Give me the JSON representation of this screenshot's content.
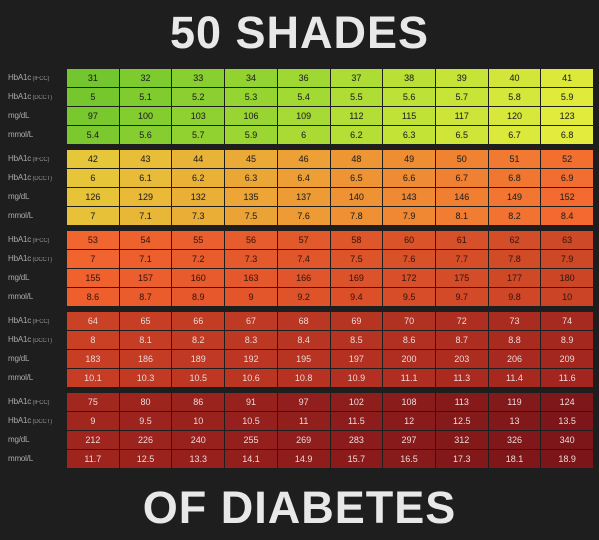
{
  "title_top": "50 SHADES",
  "title_bottom": "OF DIABETES",
  "background": "#1e1e1e",
  "title_color": "#e8e8e8",
  "title_fontsize": 45,
  "row_labels": [
    "HbA1c (IFCC)",
    "HbA1c (DCCT)",
    "mg/dL",
    "mmol/L"
  ],
  "blocks": [
    {
      "row_colors": [
        [
          "#73c62e",
          "#7dcb2f",
          "#88cf30",
          "#93d331",
          "#a0d833",
          "#addc35",
          "#bae036",
          "#c6e338",
          "#d1e639",
          "#dce93b"
        ],
        [
          "#76c72e",
          "#80cc2f",
          "#8bd030",
          "#96d432",
          "#a3d933",
          "#b0dd35",
          "#bde137",
          "#c9e438",
          "#d4e73a",
          "#dfea3b"
        ],
        [
          "#79c82e",
          "#83cd2f",
          "#8ed131",
          "#99d532",
          "#a6da34",
          "#b3de35",
          "#c0e237",
          "#cce538",
          "#d7e83a",
          "#e1eb3c"
        ],
        [
          "#7cc92f",
          "#86ce30",
          "#91d231",
          "#9cd632",
          "#a9db34",
          "#b6df36",
          "#c3e337",
          "#cfe639",
          "#dae93a",
          "#e3ec3c"
        ]
      ],
      "rows": [
        [
          31,
          32,
          33,
          34,
          36,
          37,
          38,
          39,
          40,
          41
        ],
        [
          5,
          5.1,
          5.2,
          5.3,
          5.4,
          5.5,
          5.6,
          5.7,
          5.8,
          5.9
        ],
        [
          97,
          100,
          103,
          106,
          109,
          112,
          115,
          117,
          120,
          123
        ],
        [
          5.4,
          5.6,
          5.7,
          5.9,
          6.0,
          6.2,
          6.3,
          6.5,
          6.7,
          6.8
        ]
      ]
    },
    {
      "row_colors": [
        [
          "#e6c739",
          "#e8bd38",
          "#e9b337",
          "#eba936",
          "#eda035",
          "#ee9634",
          "#ef8d33",
          "#f08332",
          "#f17931",
          "#f26f30"
        ],
        [
          "#e7c539",
          "#e8bb38",
          "#eab137",
          "#eba736",
          "#ed9e35",
          "#ee9434",
          "#ef8b33",
          "#f08132",
          "#f17731",
          "#f26d30"
        ],
        [
          "#e7c338",
          "#e9b937",
          "#eaaf37",
          "#eca536",
          "#ed9c35",
          "#ee9234",
          "#f08933",
          "#f17f32",
          "#f27531",
          "#f36b30"
        ],
        [
          "#e7c138",
          "#e9b737",
          "#eaad36",
          "#eca336",
          "#ee9a35",
          "#ef9034",
          "#f08733",
          "#f17d32",
          "#f27331",
          "#f3692f"
        ]
      ],
      "rows": [
        [
          42,
          43,
          44,
          45,
          46,
          48,
          49,
          50,
          51,
          52
        ],
        [
          6,
          6.1,
          6.2,
          6.3,
          6.4,
          6.5,
          6.6,
          6.7,
          6.8,
          6.9
        ],
        [
          126,
          129,
          132,
          135,
          137,
          140,
          143,
          146,
          149,
          152
        ],
        [
          7.0,
          7.1,
          7.3,
          7.5,
          7.6,
          7.8,
          7.9,
          8.1,
          8.2,
          8.4
        ]
      ]
    },
    {
      "row_colors": [
        [
          "#f2652f",
          "#ee622e",
          "#ea5f2d",
          "#e65c2c",
          "#e2592b",
          "#de562a",
          "#da5329",
          "#d65029",
          "#d24d28",
          "#ce4a27"
        ],
        [
          "#f1632f",
          "#ed602e",
          "#e95d2d",
          "#e55a2c",
          "#e1572b",
          "#dd542a",
          "#d95129",
          "#d54e28",
          "#d14b27",
          "#cd4827"
        ],
        [
          "#f0612e",
          "#ec5e2d",
          "#e85b2c",
          "#e4582b",
          "#e0552b",
          "#dc522a",
          "#d84f29",
          "#d44c28",
          "#d04927",
          "#cc4626"
        ],
        [
          "#ef5f2e",
          "#eb5c2d",
          "#e7592c",
          "#e3562b",
          "#df532a",
          "#db5029",
          "#d74d29",
          "#d34a28",
          "#cf4727",
          "#cb4426"
        ]
      ],
      "rows": [
        [
          53,
          54,
          55,
          56,
          57,
          58,
          60,
          61,
          62,
          63
        ],
        [
          7,
          7.1,
          7.2,
          7.3,
          7.4,
          7.5,
          7.6,
          7.7,
          7.8,
          7.9
        ],
        [
          155,
          157,
          160,
          163,
          166,
          169,
          172,
          175,
          177,
          180
        ],
        [
          8.6,
          8.7,
          8.9,
          9.0,
          9.2,
          9.4,
          9.5,
          9.7,
          9.8,
          10.0
        ]
      ]
    },
    {
      "row_colors": [
        [
          "#ca4226",
          "#c63f25",
          "#c23d24",
          "#be3a24",
          "#ba3723",
          "#b63422",
          "#b23222",
          "#ae2f21",
          "#aa2c20",
          "#a62a20"
        ],
        [
          "#c94025",
          "#c53d25",
          "#c13b24",
          "#bd3823",
          "#b93523",
          "#b53322",
          "#b13021",
          "#ad2d21",
          "#a92b20",
          "#a5281f"
        ],
        [
          "#c83e25",
          "#c43c24",
          "#c03924",
          "#bc3623",
          "#b83422",
          "#b43122",
          "#b02e21",
          "#ac2c20",
          "#a82920",
          "#a4271f"
        ],
        [
          "#c73c25",
          "#c33a24",
          "#bf3723",
          "#bb3523",
          "#b73222",
          "#b32f21",
          "#af2d21",
          "#ab2a20",
          "#a7281f",
          "#a3251f"
        ]
      ],
      "rows": [
        [
          64,
          65,
          66,
          67,
          68,
          69,
          70,
          72,
          73,
          74
        ],
        [
          8,
          8.1,
          8.2,
          8.3,
          8.4,
          8.5,
          8.6,
          8.7,
          8.8,
          8.9
        ],
        [
          183,
          186,
          189,
          192,
          195,
          197,
          200,
          203,
          206,
          209
        ],
        [
          10.1,
          10.3,
          10.5,
          10.6,
          10.8,
          10.9,
          11.1,
          11.3,
          11.4,
          11.6
        ]
      ]
    },
    {
      "row_colors": [
        [
          "#a2271f",
          "#9e251e",
          "#9a231e",
          "#96211d",
          "#921f1d",
          "#8e1e1c",
          "#8a1c1c",
          "#861a1b",
          "#82191b",
          "#7e171a"
        ],
        [
          "#a1261e",
          "#9d241e",
          "#99221d",
          "#95201d",
          "#911f1c",
          "#8d1d1c",
          "#891b1b",
          "#851a1b",
          "#81181a",
          "#7d161a"
        ],
        [
          "#a0251e",
          "#9c231e",
          "#98211d",
          "#941f1c",
          "#901e1c",
          "#8c1c1b",
          "#881a1b",
          "#84191a",
          "#80171a",
          "#7c1619"
        ],
        [
          "#9f241e",
          "#9b221d",
          "#97201d",
          "#931f1c",
          "#8f1d1c",
          "#8b1b1b",
          "#871a1a",
          "#83181a",
          "#7f1619",
          "#7b1519"
        ]
      ],
      "rows": [
        [
          75,
          80,
          86,
          91,
          97,
          102,
          108,
          113,
          119,
          124
        ],
        [
          9,
          9.5,
          10,
          10.5,
          11,
          11.5,
          12,
          12.5,
          13,
          13.5
        ],
        [
          212,
          226,
          240,
          255,
          269,
          283,
          297,
          312,
          326,
          340
        ],
        [
          11.7,
          12.5,
          13.3,
          14.1,
          14.9,
          15.7,
          16.5,
          17.3,
          18.1,
          18.9
        ]
      ]
    }
  ]
}
